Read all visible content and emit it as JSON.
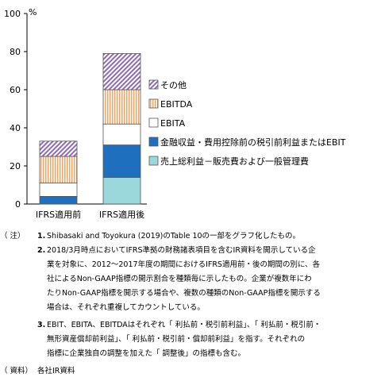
{
  "chart_data": {
    "type": "bar",
    "stacked": true,
    "y_unit": "%",
    "ylim": [
      0,
      100
    ],
    "yticks": [
      0,
      20,
      40,
      60,
      80,
      100
    ],
    "categories": [
      "IFRS適用前",
      "IFRS適用後"
    ],
    "series": [
      {
        "name": "売上総利益－販売費および一般管理費",
        "values": [
          0,
          14
        ],
        "color": "#9ad8dc",
        "pattern": "solid"
      },
      {
        "name": "金融収益・費用控除前の税引前利益またはEBIT",
        "values": [
          4,
          17
        ],
        "color": "#1f6fbf",
        "pattern": "solid"
      },
      {
        "name": "EBITA",
        "values": [
          7,
          11
        ],
        "color": "#ffffff",
        "pattern": "solid"
      },
      {
        "name": "EBITDA",
        "values": [
          14,
          18
        ],
        "color": "#f4a460",
        "pattern": "vlines"
      },
      {
        "name": "その他",
        "values": [
          8,
          19
        ],
        "color": "#8e6bb8",
        "pattern": "diag"
      }
    ]
  },
  "notes": {
    "label_note": "（ 注）",
    "n1_num": "1.",
    "n1": "Shibasaki and Toyokura (2019)のTable 10の一部をグラフ化したもの。",
    "n2_num": "2.",
    "n2_l1": "2018/3月時点においてIFRS準拠の財務諸表項目を含むIR資料を開示している企",
    "n2_l2": "業を対象に、2012～2017年度の期間におけるIFRS適用前・後の期間の別に、各",
    "n2_l3": "社によるNon-GAAP指標の開示割合を種類毎に示したもの。企業が複数年にわ",
    "n2_l4": "たりNon-GAAP指標を開示する場合や、複数の種類のNon-GAAP指標を開示する",
    "n2_l5": "場合は、それぞれ重複してカウントしている。",
    "n3_num": "3.",
    "n3_l1": "EBIT、EBITA、EBITDAはそれぞれ「 利払前・税引前利益」、「 利払前・税引前・",
    "n3_l2": "無形資産償却前利益」、「 利払前・税引前・償却前利益」を指す。それぞれの",
    "n3_l3": "指標に企業独自の調整を加えた「 調整後」の指標も含む。",
    "label_source": "（ 資料）",
    "source": "各社IR資料"
  }
}
